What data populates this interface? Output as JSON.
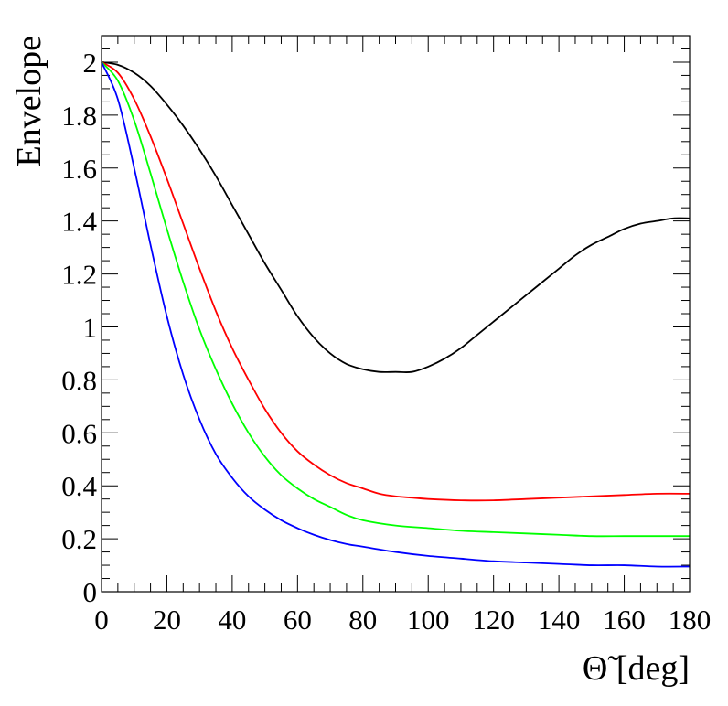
{
  "chart_data": {
    "type": "line",
    "title": "",
    "xlabel": "Θ̃ [deg]",
    "ylabel": "Envelope",
    "xlim": [
      0,
      180
    ],
    "ylim": [
      0,
      2.1
    ],
    "x_ticks": [
      0,
      20,
      40,
      60,
      80,
      100,
      120,
      140,
      160,
      180
    ],
    "x_tick_labels": [
      "0",
      "20",
      "40",
      "60",
      "80",
      "100",
      "120",
      "140",
      "160",
      "180"
    ],
    "y_ticks": [
      0,
      0.2,
      0.4,
      0.6,
      0.8,
      1,
      1.2,
      1.4,
      1.6,
      1.8,
      2
    ],
    "y_tick_labels": [
      "0",
      "0.2",
      "0.4",
      "0.6",
      "0.8",
      "1",
      "1.2",
      "1.4",
      "1.6",
      "1.8",
      "2"
    ],
    "grid": false,
    "series": [
      {
        "name": "black",
        "color": "#000000",
        "x": [
          0,
          5,
          10,
          15,
          20,
          25,
          30,
          35,
          40,
          45,
          50,
          55,
          60,
          65,
          70,
          75,
          80,
          85,
          90,
          95,
          100,
          105,
          110,
          115,
          120,
          125,
          130,
          135,
          140,
          145,
          150,
          155,
          160,
          165,
          170,
          175,
          180
        ],
        "y": [
          2.0,
          1.99,
          1.96,
          1.91,
          1.84,
          1.76,
          1.67,
          1.57,
          1.46,
          1.35,
          1.24,
          1.14,
          1.04,
          0.96,
          0.9,
          0.86,
          0.84,
          0.83,
          0.83,
          0.83,
          0.85,
          0.88,
          0.92,
          0.97,
          1.02,
          1.07,
          1.12,
          1.17,
          1.22,
          1.27,
          1.31,
          1.34,
          1.37,
          1.39,
          1.4,
          1.41,
          1.41
        ]
      },
      {
        "name": "red",
        "color": "#ff0000",
        "x": [
          0,
          5,
          10,
          15,
          20,
          25,
          30,
          35,
          40,
          45,
          50,
          55,
          60,
          65,
          70,
          75,
          80,
          85,
          90,
          95,
          100,
          110,
          120,
          130,
          140,
          150,
          160,
          170,
          180
        ],
        "y": [
          2.0,
          1.96,
          1.86,
          1.72,
          1.56,
          1.39,
          1.22,
          1.06,
          0.92,
          0.8,
          0.69,
          0.6,
          0.53,
          0.48,
          0.44,
          0.41,
          0.39,
          0.37,
          0.36,
          0.355,
          0.35,
          0.345,
          0.345,
          0.35,
          0.355,
          0.36,
          0.365,
          0.37,
          0.37
        ]
      },
      {
        "name": "green",
        "color": "#00ff00",
        "x": [
          0,
          5,
          10,
          15,
          20,
          25,
          30,
          35,
          40,
          45,
          50,
          55,
          60,
          65,
          70,
          75,
          80,
          90,
          100,
          110,
          120,
          130,
          140,
          150,
          160,
          170,
          180
        ],
        "y": [
          2.0,
          1.93,
          1.78,
          1.58,
          1.37,
          1.17,
          0.99,
          0.84,
          0.71,
          0.6,
          0.51,
          0.44,
          0.39,
          0.35,
          0.32,
          0.29,
          0.27,
          0.25,
          0.24,
          0.23,
          0.225,
          0.22,
          0.215,
          0.21,
          0.21,
          0.21,
          0.21
        ]
      },
      {
        "name": "blue",
        "color": "#0000ff",
        "x": [
          0,
          5,
          10,
          15,
          20,
          25,
          30,
          35,
          40,
          45,
          50,
          55,
          60,
          65,
          70,
          75,
          80,
          90,
          100,
          110,
          120,
          130,
          140,
          150,
          160,
          170,
          180
        ],
        "y": [
          2.0,
          1.86,
          1.6,
          1.31,
          1.04,
          0.82,
          0.65,
          0.52,
          0.43,
          0.36,
          0.31,
          0.27,
          0.24,
          0.215,
          0.195,
          0.18,
          0.17,
          0.15,
          0.135,
          0.125,
          0.115,
          0.11,
          0.105,
          0.1,
          0.1,
          0.095,
          0.095
        ]
      }
    ]
  }
}
